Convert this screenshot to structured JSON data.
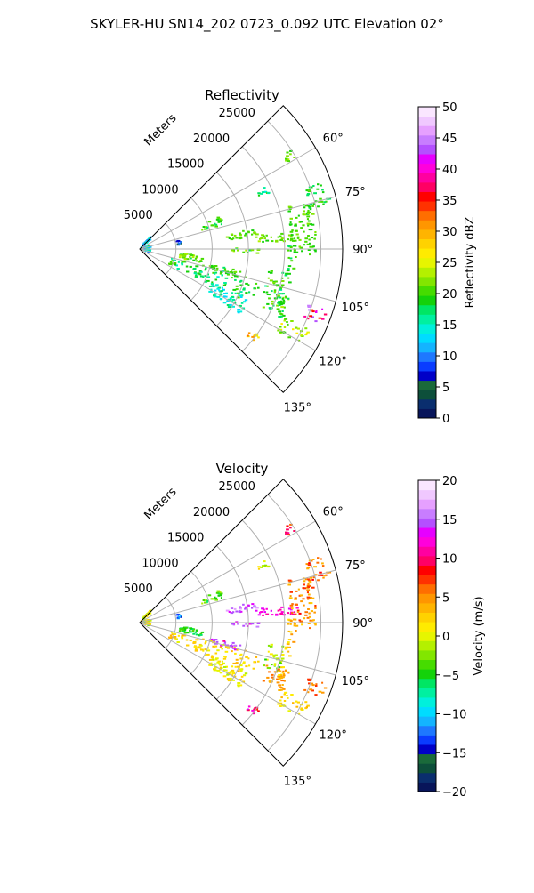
{
  "figure": {
    "title": "SKYLER-HU  SN14_202  0723_0.092 UTC Elevation 02°"
  },
  "chart_data": [
    {
      "type": "scatter",
      "title": "Reflectivity",
      "projection": "polar sector",
      "radial_label": "Meters",
      "range_ticks": [
        "5000",
        "10000",
        "15000",
        "20000",
        "25000"
      ],
      "range_tick_values": [
        5000,
        10000,
        15000,
        20000,
        25000
      ],
      "range_max": 28000,
      "azimuth_ticks": [
        "60°",
        "75°",
        "90°",
        "105°",
        "120°",
        "135°"
      ],
      "azimuth_tick_values": [
        60,
        75,
        90,
        105,
        120,
        135
      ],
      "azimuth_range": [
        45,
        135
      ],
      "grid": true,
      "colorbar": {
        "label": "Reflectivity dBZ",
        "ticks": [
          "0",
          "5",
          "10",
          "15",
          "20",
          "25",
          "30",
          "35",
          "40",
          "45",
          "50"
        ],
        "min": 0,
        "max": 50,
        "colors": [
          "#08155a",
          "#0a2e6e",
          "#0d4f3a",
          "#1a6a3a",
          "#0000c8",
          "#0a3cff",
          "#1e78ff",
          "#14b4ff",
          "#00dcff",
          "#00f0dc",
          "#00f0a0",
          "#00e664",
          "#14d20a",
          "#46dc00",
          "#82e600",
          "#b4f000",
          "#e6f500",
          "#ffeb00",
          "#ffd200",
          "#ffb400",
          "#ff9600",
          "#ff6e00",
          "#ff3200",
          "#ff0000",
          "#ff0064",
          "#ff00a0",
          "#ff00dc",
          "#e600ff",
          "#b450ff",
          "#c87dff",
          "#e6a0ff",
          "#f0c8ff",
          "#fae6ff"
        ]
      },
      "features": [
        {
          "az": [
            40,
            48
          ],
          "r": [
            0.3,
            2.6
          ],
          "value": 12,
          "noise": 4
        },
        {
          "az": [
            72,
            108
          ],
          "r": [
            0.4,
            1.5
          ],
          "value": 13,
          "noise": 4
        },
        {
          "az": [
            77,
            86
          ],
          "r": [
            5.2,
            5.8
          ],
          "value": 8,
          "noise": 3
        },
        {
          "az": [
            80,
            84
          ],
          "r": [
            11.5,
            17.0
          ],
          "value": 21,
          "noise": 2
        },
        {
          "az": [
            83,
            87
          ],
          "r": [
            16.0,
            22.0
          ],
          "value": 21,
          "noise": 2
        },
        {
          "az": [
            74,
            92
          ],
          "r": [
            21.0,
            24.5
          ],
          "value": 20,
          "noise": 2
        },
        {
          "az": [
            70,
            77
          ],
          "r": [
            24.0,
            27.5
          ],
          "value": 19,
          "noise": 2
        },
        {
          "az": [
            96,
            104
          ],
          "r": [
            5.5,
            9.0
          ],
          "value": 21,
          "noise": 3
        },
        {
          "az": [
            102,
            106
          ],
          "r": [
            9.5,
            14.5
          ],
          "value": 19,
          "noise": 3
        },
        {
          "az": [
            104,
            117
          ],
          "r": [
            4.5,
            17.5
          ],
          "value": 18,
          "noise": 3
        },
        {
          "az": [
            114,
            123
          ],
          "r": [
            11.0,
            16.5
          ],
          "value": 15,
          "noise": 3
        },
        {
          "az": [
            99,
            110
          ],
          "r": [
            18.0,
            20.5
          ],
          "value": 19,
          "noise": 3
        },
        {
          "az": [
            108,
            116
          ],
          "r": [
            18.5,
            22.0
          ],
          "value": 20,
          "noise": 4
        },
        {
          "az": [
            88,
            112
          ],
          "r": [
            20.5,
            21.6
          ],
          "value": 19,
          "noise": 2
        },
        {
          "az": [
            89,
            92
          ],
          "r": [
            12.5,
            16.5
          ],
          "value": 20,
          "noise": 3
        },
        {
          "az": [
            108,
            113
          ],
          "r": [
            24.5,
            27.3
          ],
          "value": 40,
          "noise": 6
        },
        {
          "az": [
            115,
            121
          ],
          "r": [
            22.0,
            26.0
          ],
          "value": 23,
          "noise": 4
        },
        {
          "az": [
            56,
            60
          ],
          "r": [
            23.5,
            25.0
          ],
          "value": 20,
          "noise": 3
        },
        {
          "az": [
            63,
            67
          ],
          "r": [
            18.0,
            19.5
          ],
          "value": 17,
          "noise": 3
        },
        {
          "az": [
            126,
            129
          ],
          "r": [
            19.0,
            20.5
          ],
          "value": 28,
          "noise": 4
        },
        {
          "az": [
            68,
            74
          ],
          "r": [
            9.0,
            12.0
          ],
          "value": 19,
          "noise": 3
        }
      ]
    },
    {
      "type": "scatter",
      "title": "Velocity",
      "projection": "polar sector",
      "radial_label": "Meters",
      "range_ticks": [
        "5000",
        "10000",
        "15000",
        "20000",
        "25000"
      ],
      "range_tick_values": [
        5000,
        10000,
        15000,
        20000,
        25000
      ],
      "range_max": 28000,
      "azimuth_ticks": [
        "60°",
        "75°",
        "90°",
        "105°",
        "120°",
        "135°"
      ],
      "azimuth_tick_values": [
        60,
        75,
        90,
        105,
        120,
        135
      ],
      "azimuth_range": [
        45,
        135
      ],
      "grid": true,
      "colorbar": {
        "label": "Velocity (m/s)",
        "ticks": [
          "−20",
          "−15",
          "−10",
          "−5",
          "0",
          "5",
          "10",
          "15",
          "20"
        ],
        "min": -20,
        "max": 20,
        "colors": [
          "#08155a",
          "#0a2e6e",
          "#0d4f3a",
          "#1a6a3a",
          "#0000c8",
          "#0a3cff",
          "#1e78ff",
          "#14b4ff",
          "#00dcff",
          "#00f0dc",
          "#00f0a0",
          "#00e664",
          "#14d20a",
          "#46dc00",
          "#82e600",
          "#b4f000",
          "#e6f500",
          "#ffeb00",
          "#ffd200",
          "#ffb400",
          "#ff9600",
          "#ff6e00",
          "#ff3200",
          "#ff0000",
          "#ff0064",
          "#ff00a0",
          "#ff00dc",
          "#e600ff",
          "#b450ff",
          "#c87dff",
          "#e6a0ff",
          "#f0c8ff",
          "#fae6ff"
        ]
      },
      "features": [
        {
          "az": [
            40,
            48
          ],
          "r": [
            0.3,
            2.6
          ],
          "value": 0,
          "noise": 3
        },
        {
          "az": [
            72,
            108
          ],
          "r": [
            0.4,
            1.5
          ],
          "value": 0,
          "noise": 3
        },
        {
          "az": [
            77,
            86
          ],
          "r": [
            5.2,
            5.8
          ],
          "value": -12,
          "noise": 2
        },
        {
          "az": [
            80,
            84
          ],
          "r": [
            11.5,
            17.0
          ],
          "value": 15,
          "noise": 2
        },
        {
          "az": [
            83,
            87
          ],
          "r": [
            16.0,
            22.0
          ],
          "value": 12,
          "noise": 2
        },
        {
          "az": [
            74,
            92
          ],
          "r": [
            21.0,
            24.5
          ],
          "value": 5,
          "noise": 3
        },
        {
          "az": [
            70,
            77
          ],
          "r": [
            24.0,
            27.5
          ],
          "value": 6,
          "noise": 3
        },
        {
          "az": [
            96,
            104
          ],
          "r": [
            5.5,
            9.0
          ],
          "value": -5,
          "noise": 2
        },
        {
          "az": [
            102,
            106
          ],
          "r": [
            9.5,
            14.5
          ],
          "value": 13,
          "noise": 3
        },
        {
          "az": [
            104,
            117
          ],
          "r": [
            4.5,
            17.5
          ],
          "value": 2,
          "noise": 2
        },
        {
          "az": [
            114,
            123
          ],
          "r": [
            11.0,
            16.5
          ],
          "value": 1,
          "noise": 2
        },
        {
          "az": [
            99,
            110
          ],
          "r": [
            18.0,
            20.5
          ],
          "value": -2,
          "noise": 3
        },
        {
          "az": [
            108,
            116
          ],
          "r": [
            18.5,
            22.0
          ],
          "value": 5,
          "noise": 2
        },
        {
          "az": [
            88,
            112
          ],
          "r": [
            20.5,
            21.6
          ],
          "value": 3,
          "noise": 2
        },
        {
          "az": [
            89,
            92
          ],
          "r": [
            12.5,
            16.5
          ],
          "value": 14,
          "noise": 2
        },
        {
          "az": [
            108,
            113
          ],
          "r": [
            24.5,
            27.3
          ],
          "value": 6,
          "noise": 2
        },
        {
          "az": [
            115,
            121
          ],
          "r": [
            22.0,
            26.0
          ],
          "value": 2,
          "noise": 2
        },
        {
          "az": [
            56,
            60
          ],
          "r": [
            23.5,
            25.0
          ],
          "value": 8,
          "noise": 3
        },
        {
          "az": [
            63,
            67
          ],
          "r": [
            18.0,
            19.5
          ],
          "value": 0,
          "noise": 3
        },
        {
          "az": [
            126,
            129
          ],
          "r": [
            19.0,
            20.5
          ],
          "value": 10,
          "noise": 3
        },
        {
          "az": [
            68,
            74
          ],
          "r": [
            9.0,
            12.0
          ],
          "value": -4,
          "noise": 3
        }
      ]
    }
  ]
}
